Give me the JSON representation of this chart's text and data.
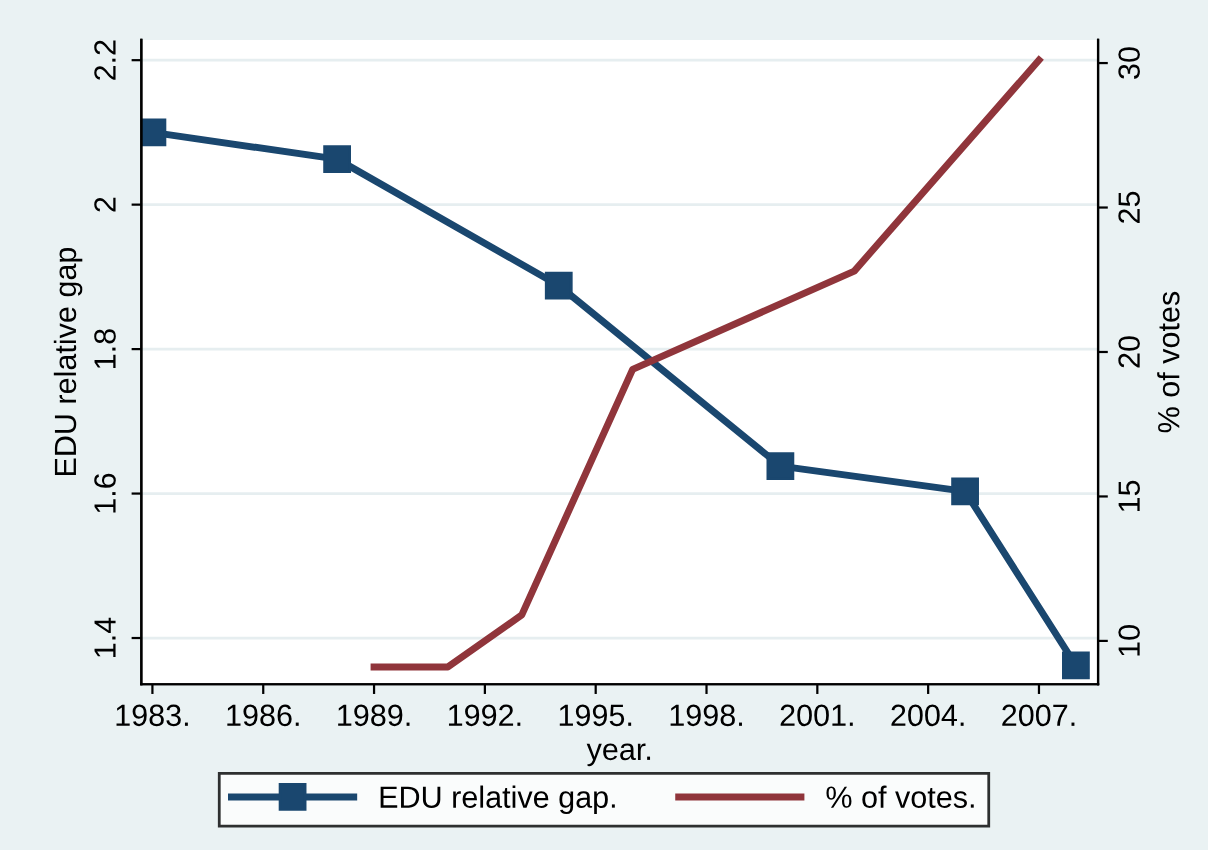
{
  "chart_data": {
    "type": "line",
    "xlabel": "year.",
    "ylabel": "EDU relative gap",
    "y2label": "% of votes",
    "xlim": [
      1982.7,
      2008.6
    ],
    "xticks": [
      {
        "value": 1983,
        "label": "1983."
      },
      {
        "value": 1986,
        "label": "1986."
      },
      {
        "value": 1989,
        "label": "1989."
      },
      {
        "value": 1992,
        "label": "1992."
      },
      {
        "value": 1995,
        "label": "1995."
      },
      {
        "value": 1998,
        "label": "1998."
      },
      {
        "value": 2001,
        "label": "2001."
      },
      {
        "value": 2004,
        "label": "2004."
      },
      {
        "value": 2007,
        "label": "2007."
      }
    ],
    "ylim": [
      1.336,
      2.228
    ],
    "yticks": [
      1.4,
      1.6,
      1.8,
      2,
      2.2
    ],
    "y2lim": [
      8.5,
      30.8
    ],
    "y2ticks": [
      10,
      15,
      20,
      25,
      30
    ],
    "grid": "y",
    "legend": "bottom",
    "series": [
      {
        "name": "EDU relative gap.",
        "color": "#1a476f",
        "marker": "square",
        "x": [
          1983,
          1988,
          1994,
          2000,
          2005,
          2008
        ],
        "values": [
          2.1,
          2.063,
          1.888,
          1.638,
          1.603,
          1.362
        ]
      },
      {
        "name": "% of votes.",
        "color": "#90353b",
        "marker": "none",
        "axis": "y2",
        "x": [
          1989,
          1991,
          1993,
          1996,
          2002,
          2007
        ],
        "values": [
          9.1,
          9.1,
          10.9,
          19.4,
          22.8,
          30.1
        ]
      }
    ]
  }
}
